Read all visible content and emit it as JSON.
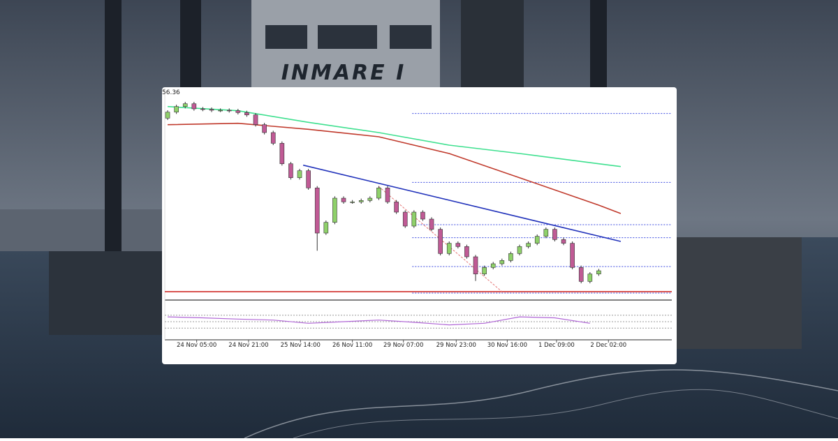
{
  "background": {
    "ship_name": "INMARE I"
  },
  "chart_data": {
    "type": "candlestick",
    "xlim": [
      -0.32,
      57.3
    ],
    "ylim": [
      51.95,
      56.45
    ],
    "yticks": [
      56.36
    ],
    "xticks": [
      {
        "value": 3.3,
        "label": "24 Nov 05:00"
      },
      {
        "value": 9.2,
        "label": "24 Nov 21:00"
      },
      {
        "value": 15.1,
        "label": "25 Nov 14:00"
      },
      {
        "value": 21.0,
        "label": "26 Nov 11:00"
      },
      {
        "value": 26.8,
        "label": "29 Nov 07:00"
      },
      {
        "value": 32.8,
        "label": "29 Nov 23:00"
      },
      {
        "value": 38.6,
        "label": "30 Nov 16:00"
      },
      {
        "value": 44.2,
        "label": "1 Dec 09:00"
      },
      {
        "value": 50.1,
        "label": "2 Dec 02:00"
      }
    ],
    "up_color": "#8fd16a",
    "down_color": "#c05a95",
    "open": [
      55.8,
      55.93,
      56.05,
      56.11,
      56.0,
      55.99,
      55.97,
      55.97,
      55.96,
      55.92,
      55.87,
      55.66,
      55.49,
      55.26,
      54.82,
      54.52,
      54.67,
      54.3,
      53.33,
      53.56,
      54.08,
      54.0,
      54.0,
      54.03,
      54.08,
      54.3,
      54.0,
      53.78,
      53.48,
      53.78,
      53.63,
      53.41,
      52.89,
      53.11,
      53.04,
      52.82,
      52.45,
      52.59,
      52.67,
      52.74,
      52.89,
      53.04,
      53.11,
      53.26,
      53.41,
      53.19,
      53.11,
      52.59,
      52.29,
      52.45
    ],
    "high": [
      55.97,
      56.09,
      56.15,
      56.15,
      56.04,
      56.03,
      56.01,
      56.01,
      56.0,
      55.96,
      55.91,
      55.7,
      55.53,
      55.3,
      54.86,
      54.71,
      54.71,
      54.34,
      53.6,
      54.12,
      54.12,
      54.04,
      54.07,
      54.12,
      54.34,
      54.34,
      54.04,
      53.82,
      53.82,
      53.82,
      53.67,
      53.45,
      53.15,
      53.15,
      53.08,
      52.86,
      52.63,
      52.71,
      52.78,
      52.93,
      53.08,
      53.15,
      53.3,
      53.45,
      53.45,
      53.23,
      53.15,
      52.63,
      52.49,
      52.56
    ],
    "low": [
      55.76,
      55.89,
      56.01,
      55.96,
      55.95,
      55.93,
      55.93,
      55.92,
      55.88,
      55.83,
      55.62,
      55.45,
      55.22,
      54.78,
      54.48,
      54.48,
      54.26,
      52.95,
      53.29,
      53.52,
      53.96,
      53.96,
      53.96,
      53.99,
      54.04,
      53.96,
      53.74,
      53.44,
      53.44,
      53.59,
      53.37,
      52.85,
      52.85,
      53.0,
      52.78,
      52.3,
      52.41,
      52.55,
      52.63,
      52.7,
      52.85,
      53.0,
      53.07,
      53.22,
      53.15,
      53.07,
      52.55,
      52.25,
      52.25,
      52.41
    ],
    "close": [
      55.93,
      56.05,
      56.11,
      56.0,
      55.99,
      55.97,
      55.97,
      55.96,
      55.92,
      55.87,
      55.66,
      55.49,
      55.26,
      54.82,
      54.52,
      54.67,
      54.3,
      53.33,
      53.56,
      54.08,
      54.0,
      54.0,
      54.03,
      54.08,
      54.3,
      54.0,
      53.78,
      53.48,
      53.78,
      53.63,
      53.41,
      52.89,
      53.11,
      53.04,
      52.82,
      52.45,
      52.59,
      52.67,
      52.74,
      52.89,
      53.04,
      53.11,
      53.26,
      53.41,
      53.19,
      53.11,
      52.59,
      52.29,
      52.45,
      52.52
    ],
    "moving_averages": [
      {
        "color": "#3ee08f",
        "x": [
          0,
          8,
          16,
          24,
          32,
          40,
          49,
          51.5
        ],
        "values": [
          56.05,
          55.96,
          55.71,
          55.49,
          55.22,
          55.04,
          54.82,
          54.76
        ]
      },
      {
        "color": "#c0392b",
        "x": [
          0,
          8,
          16,
          24,
          32,
          40,
          49,
          51.5
        ],
        "values": [
          55.66,
          55.69,
          55.56,
          55.4,
          55.04,
          54.52,
          53.93,
          53.75
        ]
      }
    ],
    "levels": {
      "color": "#3b4be0",
      "from": 27.8,
      "values": [
        55.9,
        54.42,
        53.51,
        53.23,
        52.61,
        52.04
      ]
    },
    "support": {
      "color": "#d9534f",
      "value": 52.07
    },
    "trendlines": [
      {
        "color": "#2233bb",
        "x": [
          15.4,
          51.5
        ],
        "values": [
          54.79,
          53.15
        ],
        "dashed": false
      },
      {
        "color": "#e57373",
        "x": [
          24,
          38
        ],
        "values": [
          54.33,
          52.07
        ],
        "dashed": true
      }
    ],
    "oscillator": {
      "color": "#b066d6",
      "ylim": [
        0,
        100
      ],
      "levels": [
        70,
        50,
        30
      ],
      "x": [
        0,
        4,
        8,
        12,
        16,
        20,
        24,
        28,
        32,
        36,
        40,
        44,
        48
      ],
      "values": [
        65,
        62,
        58,
        55,
        45,
        50,
        55,
        48,
        40,
        45,
        65,
        62,
        45
      ]
    }
  }
}
